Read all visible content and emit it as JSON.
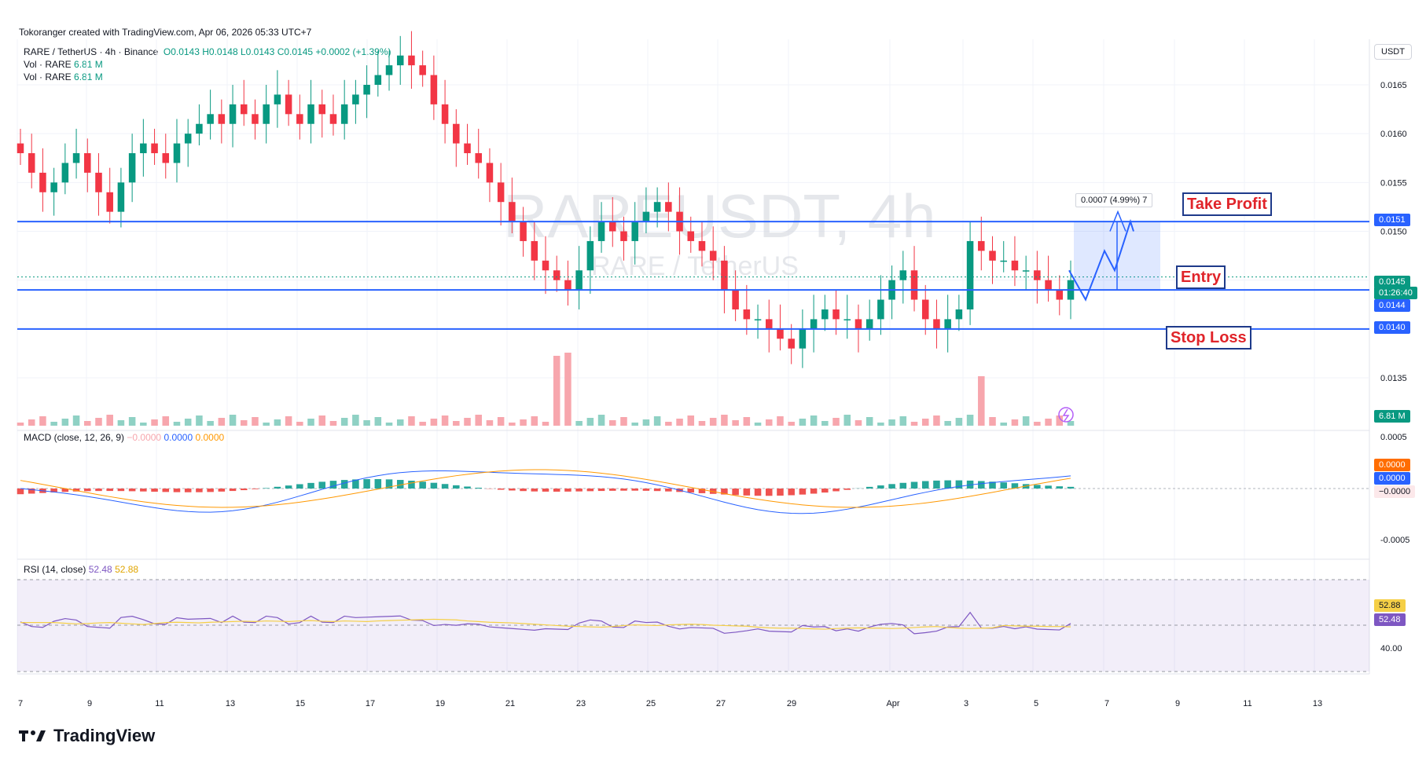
{
  "header": {
    "attribution": "Tokoranger created with TradingView.com, Apr 06, 2026 05:33 UTC+7"
  },
  "legend": {
    "symbol": "RARE / TetherUS · 4h · Binance",
    "o": "O0.0143",
    "h": "H0.0148",
    "l": "L0.0143",
    "c": "C0.0145",
    "chg": "+0.0002 (+1.39%)",
    "vol1": "Vol · RARE",
    "vol1_val": "6.81 M",
    "vol2": "Vol · RARE",
    "vol2_val": "6.81 M"
  },
  "currency_button": "USDT",
  "watermark": {
    "line1": "RAREUSDT, 4h",
    "line2": "RARE / TetherUS"
  },
  "annotations": {
    "take_profit": "Take Profit",
    "entry": "Entry",
    "stop_loss": "Stop Loss",
    "measure": "0.0007 (4.99%) 7"
  },
  "price_tags": {
    "tp": "0.0151",
    "current": "0.0145",
    "countdown": "01:26:40",
    "entry": "0.0144",
    "sl": "0.0140",
    "vol": "6.81 M",
    "macd_a": "0.0000",
    "macd_b": "0.0000",
    "macd_c": "−0.0000",
    "rsi_a": "52.88",
    "rsi_b": "52.48"
  },
  "macd_legend": {
    "label": "MACD (close, 12, 26, 9)",
    "v1": "−0.0000",
    "v2": "0.0000",
    "v3": "0.0000"
  },
  "rsi_legend": {
    "label": "RSI (14, close)",
    "v1": "52.48",
    "v2": "52.88"
  },
  "brand": "TradingView",
  "colors": {
    "up": "#089981",
    "down": "#f23645",
    "level": "#2962ff",
    "macd": "#2962ff",
    "signal": "#ff9800",
    "rsi": "#7e57c2"
  },
  "chart_data": {
    "type": "candlestick",
    "symbol": "RAREUSDT",
    "timeframe": "4h",
    "price_axis_ticks": [
      "0.0165",
      "0.0160",
      "0.0155",
      "0.0150",
      "0.0145",
      "0.0140",
      "0.0135"
    ],
    "macd_axis_ticks": [
      "0.0005",
      "-0.0005"
    ],
    "rsi_axis_ticks": [
      "40.00"
    ],
    "x_tick_labels": [
      "7",
      "9",
      "11",
      "13",
      "15",
      "17",
      "19",
      "21",
      "23",
      "25",
      "27",
      "29",
      "Apr",
      "3",
      "5",
      "7",
      "9",
      "11",
      "13"
    ],
    "levels": {
      "take_profit": 0.0151,
      "entry": 0.0144,
      "stop_loss": 0.014
    },
    "close_series": [
      0.0158,
      0.0156,
      0.0154,
      0.0155,
      0.0157,
      0.0158,
      0.0156,
      0.0154,
      0.0152,
      0.0155,
      0.0158,
      0.0159,
      0.0158,
      0.0157,
      0.0159,
      0.016,
      0.0161,
      0.0162,
      0.0161,
      0.0163,
      0.0162,
      0.0161,
      0.0163,
      0.0164,
      0.0162,
      0.0161,
      0.0163,
      0.0162,
      0.0161,
      0.0163,
      0.0164,
      0.0165,
      0.0166,
      0.0167,
      0.0168,
      0.0167,
      0.0166,
      0.0163,
      0.0161,
      0.0159,
      0.0158,
      0.0157,
      0.0155,
      0.0153,
      0.0151,
      0.0149,
      0.0147,
      0.0146,
      0.0145,
      0.0144,
      0.0146,
      0.0149,
      0.0151,
      0.015,
      0.0149,
      0.0151,
      0.0152,
      0.0153,
      0.0152,
      0.015,
      0.0149,
      0.0148,
      0.0147,
      0.0144,
      0.0142,
      0.0141,
      0.0141,
      0.014,
      0.0139,
      0.0138,
      0.014,
      0.0141,
      0.0142,
      0.0141,
      0.0141,
      0.014,
      0.0141,
      0.0143,
      0.0145,
      0.0146,
      0.0143,
      0.0141,
      0.014,
      0.0141,
      0.0142,
      0.0149,
      0.0148,
      0.0147,
      0.0147,
      0.0146,
      0.0146,
      0.0145,
      0.0144,
      0.0143,
      0.0145
    ]
  }
}
